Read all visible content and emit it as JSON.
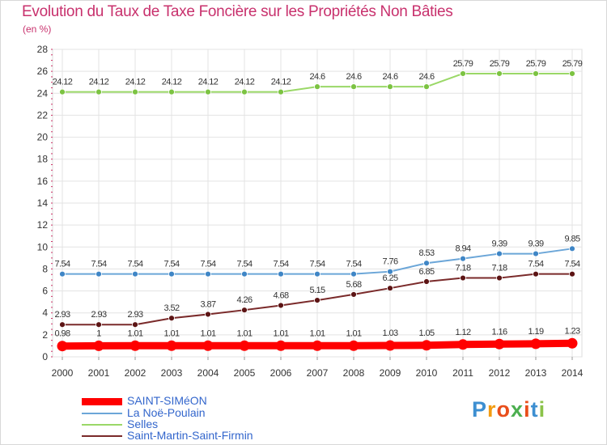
{
  "title": "Evolution du Taux de Taxe Foncière sur les Propriétés Non Bâties",
  "subtitle": "(en %)",
  "brand": {
    "name": "Proxiti",
    "letters": [
      "P",
      "r",
      "o",
      "x",
      "i",
      "t",
      "i"
    ],
    "colors": [
      "#3d8fd1",
      "#f39c12",
      "#e94e1b",
      "#4caf50",
      "#e94e1b",
      "#3d8fd1",
      "#8bc34a"
    ]
  },
  "chart_data": {
    "type": "line",
    "title": "Evolution du Taux de Taxe Foncière sur les Propriétés Non Bâties",
    "ylabel": "(en %)",
    "xlabel": "",
    "ylim": [
      0,
      28
    ],
    "yticks": [
      0,
      2,
      4,
      6,
      8,
      10,
      12,
      14,
      16,
      18,
      20,
      22,
      24,
      26,
      28
    ],
    "grid": true,
    "legend_position": "bottom-left",
    "x": [
      "2000",
      "2001",
      "2002",
      "2003",
      "2004",
      "2005",
      "2006",
      "2007",
      "2008",
      "2009",
      "2010",
      "2011",
      "2012",
      "2013",
      "2014"
    ],
    "series": [
      {
        "name": "Selles",
        "color": "#9ad867",
        "marker": "#7cc342",
        "values": [
          24.12,
          24.12,
          24.12,
          24.12,
          24.12,
          24.12,
          24.12,
          24.6,
          24.6,
          24.6,
          24.6,
          25.79,
          25.79,
          25.79,
          25.79
        ],
        "labels": [
          "24.12",
          "24.12",
          "24.12",
          "24.12",
          "24.12",
          "24.12",
          "24.12",
          "24.6",
          "24.6",
          "24.6",
          "24.6",
          "25.79",
          "25.79",
          "25.79",
          "25.79"
        ]
      },
      {
        "name": "La Noë-Poulain",
        "color": "#6ba6d8",
        "marker": "#3f86c6",
        "values": [
          7.54,
          7.54,
          7.54,
          7.54,
          7.54,
          7.54,
          7.54,
          7.54,
          7.54,
          7.76,
          8.53,
          8.94,
          9.39,
          9.39,
          9.85
        ],
        "labels": [
          "7.54",
          "7.54",
          "7.54",
          "7.54",
          "7.54",
          "7.54",
          "7.54",
          "7.54",
          "7.54",
          "7.76",
          "8.53",
          "8.94",
          "9.39",
          "9.39",
          "9.85"
        ]
      },
      {
        "name": "Saint-Martin-Saint-Firmin",
        "color": "#7a2a2a",
        "marker": "#5c1414",
        "values": [
          2.93,
          2.93,
          2.93,
          3.52,
          3.87,
          4.26,
          4.68,
          5.15,
          5.68,
          6.25,
          6.85,
          7.18,
          7.18,
          7.54,
          7.54
        ],
        "labels": [
          "2.93",
          "2.93",
          "2.93",
          "3.52",
          "3.87",
          "4.26",
          "4.68",
          "5.15",
          "5.68",
          "6.25",
          "6.85",
          "7.18",
          "7.18",
          "7.54",
          "7.54"
        ]
      },
      {
        "name": "SAINT-SIMéON",
        "color": "#ff0000",
        "marker": "#ff0000",
        "thick": true,
        "values": [
          0.98,
          1,
          1.01,
          1.01,
          1.01,
          1.01,
          1.01,
          1.01,
          1.01,
          1.03,
          1.05,
          1.12,
          1.16,
          1.19,
          1.23
        ],
        "labels": [
          "0.98",
          "1",
          "1.01",
          "1.01",
          "1.01",
          "1.01",
          "1.01",
          "1.01",
          "1.01",
          "1.03",
          "1.05",
          "1.12",
          "1.16",
          "1.19",
          "1.23"
        ]
      }
    ],
    "legend": [
      {
        "name": "SAINT-SIMéON",
        "color": "#ff0000",
        "thick": true
      },
      {
        "name": "La Noë-Poulain",
        "color": "#6ba6d8"
      },
      {
        "name": "Selles",
        "color": "#9ad867"
      },
      {
        "name": "Saint-Martin-Saint-Firmin",
        "color": "#7a2a2a"
      }
    ]
  }
}
